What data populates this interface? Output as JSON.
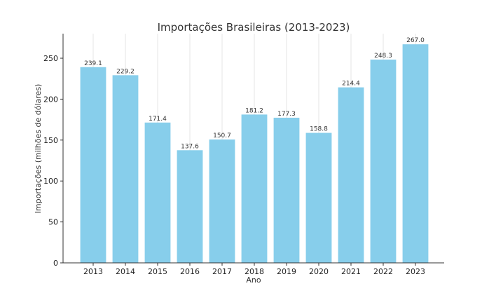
{
  "chart_data": {
    "type": "bar",
    "title": "Importações Brasileiras (2013-2023)",
    "xlabel": "Ano",
    "ylabel": "Importações (milhões de dólares)",
    "categories": [
      "2013",
      "2014",
      "2015",
      "2016",
      "2017",
      "2018",
      "2019",
      "2020",
      "2021",
      "2022",
      "2023"
    ],
    "values": [
      239.1,
      229.2,
      171.4,
      137.6,
      150.7,
      181.2,
      177.3,
      158.8,
      214.4,
      248.3,
      267.0
    ],
    "data_labels": [
      "239.1",
      "229.2",
      "171.4",
      "137.6",
      "150.7",
      "181.2",
      "177.3",
      "158.8",
      "214.4",
      "248.3",
      "267.0"
    ],
    "ylim": [
      0,
      280
    ],
    "yticks": [
      0,
      50,
      100,
      150,
      200,
      250
    ],
    "grid": "vertical",
    "legend": "none",
    "colors": {
      "bar": "#87CEEB",
      "grid": "#e6e6e6",
      "axis": "#333333"
    }
  }
}
